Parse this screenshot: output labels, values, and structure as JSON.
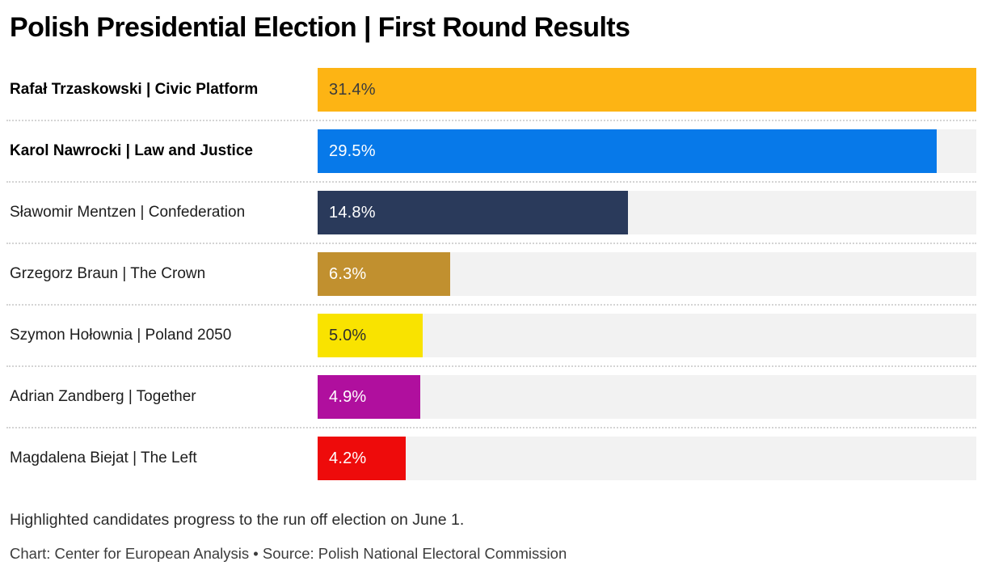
{
  "page": {
    "title": "Polish Presidential Election | First Round Results",
    "note": "Highlighted candidates progress to the run off election on June 1.",
    "credit": "Chart: Center for European Analysis • Source: Polish National Electoral Commission"
  },
  "colors": {
    "background": "#FFFFFF",
    "bar_track": "#F2F2F2",
    "divider_dots": "#D4D4D4",
    "title_text": "#000000",
    "label_text": "#1D1D1D"
  },
  "chart_data": {
    "type": "bar",
    "orientation": "horizontal",
    "title": "Polish Presidential Election | First Round Results",
    "xlim": [
      0,
      31.4
    ],
    "grid": false,
    "legend": false,
    "note": "Highlighted candidates progress to the run off election on June 1.",
    "credit": "Chart: Center for European Analysis • Source: Polish National Electoral Commission",
    "categories": [
      "Rafał Trzaskowski | Civic Platform",
      "Karol Nawrocki | Law and Justice",
      "Sławomir Mentzen | Confederation",
      "Grzegorz Braun | The Crown",
      "Szymon Hołownia | Poland 2050",
      "Adrian Zandberg | Together",
      "Magdalena Biejat | The Left"
    ],
    "values": [
      31.4,
      29.5,
      14.8,
      6.3,
      5.0,
      4.9,
      4.2
    ],
    "rows": [
      {
        "label": "Rafał Trzaskowski | Civic Platform",
        "value": 31.4,
        "value_label": "31.4%",
        "bar_color": "#FDB414",
        "value_text_color": "#3B3B3B",
        "highlighted": true
      },
      {
        "label": "Karol Nawrocki | Law and Justice",
        "value": 29.5,
        "value_label": "29.5%",
        "bar_color": "#0779E9",
        "value_text_color": "#FFFFFF",
        "highlighted": true
      },
      {
        "label": "Sławomir Mentzen | Confederation",
        "value": 14.8,
        "value_label": "14.8%",
        "bar_color": "#2A3A5B",
        "value_text_color": "#FFFFFF",
        "highlighted": false
      },
      {
        "label": "Grzegorz Braun | The Crown",
        "value": 6.3,
        "value_label": "6.3%",
        "bar_color": "#C1902F",
        "value_text_color": "#FFFFFF",
        "highlighted": false
      },
      {
        "label": "Szymon Hołownia | Poland 2050",
        "value": 5.0,
        "value_label": "5.0%",
        "bar_color": "#F9E300",
        "value_text_color": "#2E2E2E",
        "highlighted": false
      },
      {
        "label": "Adrian Zandberg | Together",
        "value": 4.9,
        "value_label": "4.9%",
        "bar_color": "#B00F9E",
        "value_text_color": "#FFFFFF",
        "highlighted": false
      },
      {
        "label": "Magdalena Biejat | The Left",
        "value": 4.2,
        "value_label": "4.2%",
        "bar_color": "#EE0B0B",
        "value_text_color": "#FFFFFF",
        "highlighted": false
      }
    ]
  }
}
